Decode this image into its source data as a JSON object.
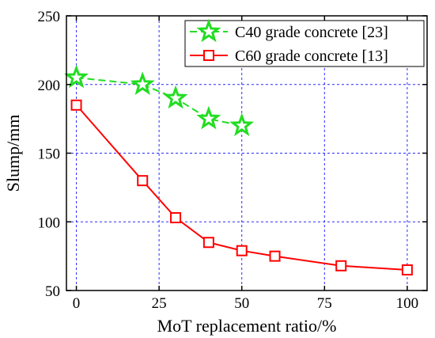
{
  "chart_data": {
    "type": "line",
    "xlabel": "MoT replacement ratio/%",
    "ylabel": "Slump/mm",
    "xlim": [
      -3,
      106
    ],
    "ylim": [
      50,
      250
    ],
    "x_ticks": [
      0,
      25,
      50,
      75,
      100
    ],
    "y_ticks": [
      50,
      100,
      150,
      200,
      250
    ],
    "grid": true,
    "grid_style": "dashed-blue",
    "legend_position": "top-right",
    "series": [
      {
        "name": "C40 grade concrete [23]",
        "color": "#22dd22",
        "line_style": "dashed",
        "marker": "star",
        "x": [
          0,
          20,
          30,
          40,
          50
        ],
        "y": [
          205,
          200,
          190,
          175,
          170
        ]
      },
      {
        "name": "C60 grade concrete [13]",
        "color": "#ff0000",
        "line_style": "solid",
        "marker": "open-square",
        "x": [
          0,
          20,
          30,
          40,
          50,
          60,
          80,
          100
        ],
        "y": [
          185,
          130,
          103,
          85,
          79,
          75,
          68,
          65
        ]
      }
    ]
  }
}
